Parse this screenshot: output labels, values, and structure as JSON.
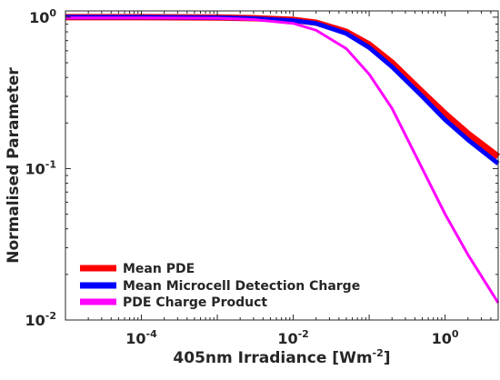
{
  "chart_data": {
    "type": "line",
    "xlabel": {
      "main": "405nm Irradiance [Wm",
      "sup": "-2",
      "tail": "]"
    },
    "ylabel": "Normalised Parameter",
    "x_scale": "log",
    "y_scale": "log",
    "xlim": [
      1e-05,
      5
    ],
    "ylim": [
      0.01,
      1.1
    ],
    "x_ticks": [
      {
        "value": 0.0001,
        "base": "10",
        "exp": "-4"
      },
      {
        "value": 0.01,
        "base": "10",
        "exp": "-2"
      },
      {
        "value": 1,
        "base": "10",
        "exp": "0"
      }
    ],
    "y_ticks": [
      {
        "value": 1,
        "base": "10",
        "exp": "0"
      },
      {
        "value": 0.1,
        "base": "10",
        "exp": "-1"
      },
      {
        "value": 0.01,
        "base": "10",
        "exp": "-2"
      }
    ],
    "grid": false,
    "legend_position": "bottom-left",
    "series": [
      {
        "name": "Mean PDE",
        "color": "#ff0000",
        "width": 7,
        "x": [
          1e-05,
          0.0001,
          0.001,
          0.003,
          0.01,
          0.02,
          0.05,
          0.1,
          0.2,
          0.5,
          1,
          2,
          5
        ],
        "y": [
          1.0,
          1.0,
          0.995,
          0.985,
          0.96,
          0.92,
          0.8,
          0.66,
          0.5,
          0.32,
          0.23,
          0.17,
          0.12
        ]
      },
      {
        "name": "Mean Microcell Detection Charge",
        "color": "#0000ff",
        "width": 5,
        "x": [
          1e-05,
          0.0001,
          0.001,
          0.003,
          0.01,
          0.02,
          0.05,
          0.1,
          0.2,
          0.5,
          1,
          2,
          5
        ],
        "y": [
          1.0,
          1.0,
          0.993,
          0.98,
          0.95,
          0.91,
          0.78,
          0.63,
          0.47,
          0.3,
          0.21,
          0.155,
          0.108
        ]
      },
      {
        "name": "PDE Charge Product",
        "color": "#ff00ff",
        "width": 3,
        "x": [
          1e-05,
          0.0001,
          0.001,
          0.003,
          0.01,
          0.02,
          0.05,
          0.1,
          0.2,
          0.5,
          1,
          2,
          5
        ],
        "y": [
          0.99,
          0.99,
          0.985,
          0.965,
          0.91,
          0.82,
          0.62,
          0.42,
          0.25,
          0.1,
          0.05,
          0.027,
          0.013
        ]
      }
    ]
  }
}
